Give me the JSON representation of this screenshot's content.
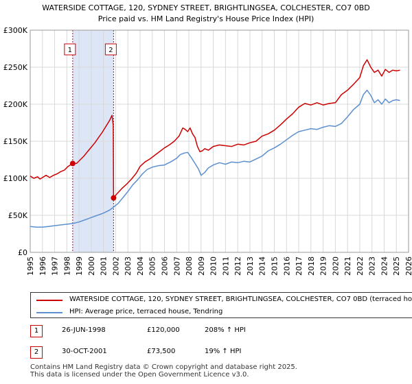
{
  "chart_data": {
    "type": "line",
    "title": "WATERSIDE COTTAGE, 120, SYDNEY STREET, BRIGHTLINGSEA, COLCHESTER, CO7 0BD",
    "subtitle": "Price paid vs. HM Land Registry's House Price Index (HPI)",
    "xlabel": "",
    "ylabel": "",
    "xlim": [
      1995,
      2026
    ],
    "ylim": [
      0,
      300000
    ],
    "x_ticks": [
      "1995",
      "1996",
      "1997",
      "1998",
      "1999",
      "2000",
      "2001",
      "2002",
      "2003",
      "2004",
      "2005",
      "2006",
      "2007",
      "2008",
      "2009",
      "2010",
      "2011",
      "2012",
      "2013",
      "2014",
      "2015",
      "2016",
      "2017",
      "2018",
      "2019",
      "2020",
      "2021",
      "2022",
      "2023",
      "2024",
      "2025",
      "2026"
    ],
    "y_ticks": [
      {
        "value": 0,
        "label": "£0"
      },
      {
        "value": 50000,
        "label": "£50K"
      },
      {
        "value": 100000,
        "label": "£100K"
      },
      {
        "value": 150000,
        "label": "£150K"
      },
      {
        "value": 200000,
        "label": "£200K"
      },
      {
        "value": 250000,
        "label": "£250K"
      },
      {
        "value": 300000,
        "label": "£300K"
      }
    ],
    "grid": true,
    "shaded_span": [
      1998.48,
      2001.83
    ],
    "series": [
      {
        "name": "WATERSIDE COTTAGE, 120, SYDNEY STREET, BRIGHTLINGSEA, COLCHESTER, CO7 0BD (terraced house)",
        "color": "#cc0000",
        "x": [
          1995.0,
          1995.3,
          1995.6,
          1995.8,
          1996.0,
          1996.3,
          1996.6,
          1996.9,
          1997.2,
          1997.5,
          1997.8,
          1998.1,
          1998.48,
          1998.8,
          1999.1,
          1999.4,
          1999.7,
          2000.0,
          2000.3,
          2000.6,
          2000.9,
          2001.2,
          2001.5,
          2001.7,
          2001.8,
          2001.83,
          2002.1,
          2002.5,
          2002.9,
          2003.3,
          2003.7,
          2004.0,
          2004.4,
          2004.8,
          2005.2,
          2005.6,
          2006.0,
          2006.4,
          2006.8,
          2007.2,
          2007.5,
          2007.7,
          2007.9,
          2008.1,
          2008.3,
          2008.5,
          2008.7,
          2008.9,
          2009.1,
          2009.3,
          2009.6,
          2010.0,
          2010.5,
          2011.0,
          2011.5,
          2012.0,
          2012.5,
          2013.0,
          2013.5,
          2014.0,
          2014.5,
          2015.0,
          2015.5,
          2016.0,
          2016.5,
          2017.0,
          2017.5,
          2018.0,
          2018.5,
          2019.0,
          2019.5,
          2020.0,
          2020.5,
          2021.0,
          2021.5,
          2022.0,
          2022.3,
          2022.6,
          2022.9,
          2023.2,
          2023.5,
          2023.8,
          2024.1,
          2024.4,
          2024.7,
          2025.0,
          2025.3
        ],
        "values": [
          103000,
          100000,
          102000,
          99000,
          101000,
          104000,
          101000,
          104000,
          106000,
          109000,
          111000,
          116000,
          120000,
          120000,
          125000,
          130000,
          136000,
          142000,
          148000,
          155000,
          162000,
          170000,
          178000,
          185000,
          172000,
          73500,
          79000,
          86000,
          92000,
          99000,
          107000,
          116000,
          122000,
          126000,
          131000,
          136000,
          141000,
          145000,
          150000,
          157000,
          168000,
          166000,
          163000,
          168000,
          160000,
          155000,
          143000,
          136000,
          137000,
          140000,
          138000,
          143000,
          145000,
          144000,
          143000,
          146000,
          145000,
          148000,
          150000,
          157000,
          160000,
          165000,
          172000,
          180000,
          187000,
          196000,
          201000,
          199000,
          202000,
          199000,
          201000,
          202000,
          213000,
          219000,
          227000,
          236000,
          252000,
          260000,
          250000,
          243000,
          246000,
          238000,
          247000,
          243000,
          246000,
          245000,
          246000
        ]
      },
      {
        "name": "HPI: Average price, terraced house, Tendring",
        "color": "#5b8fd0",
        "x": [
          1995.0,
          1995.5,
          1996.0,
          1996.5,
          1997.0,
          1997.5,
          1998.0,
          1998.5,
          1999.0,
          1999.5,
          2000.0,
          2000.5,
          2001.0,
          2001.5,
          2001.83,
          2002.2,
          2002.6,
          2003.0,
          2003.4,
          2003.8,
          2004.2,
          2004.6,
          2005.0,
          2005.5,
          2006.0,
          2006.5,
          2007.0,
          2007.3,
          2007.6,
          2007.9,
          2008.2,
          2008.5,
          2008.8,
          2009.0,
          2009.3,
          2009.6,
          2010.0,
          2010.5,
          2011.0,
          2011.5,
          2012.0,
          2012.5,
          2013.0,
          2013.5,
          2014.0,
          2014.5,
          2015.0,
          2015.5,
          2016.0,
          2016.5,
          2017.0,
          2017.5,
          2018.0,
          2018.5,
          2019.0,
          2019.5,
          2020.0,
          2020.5,
          2021.0,
          2021.5,
          2022.0,
          2022.3,
          2022.6,
          2022.9,
          2023.2,
          2023.5,
          2023.8,
          2024.1,
          2024.4,
          2024.7,
          2025.0,
          2025.3
        ],
        "values": [
          35000,
          34000,
          34000,
          35000,
          36000,
          37000,
          38000,
          39000,
          41000,
          44000,
          47000,
          50000,
          53000,
          57000,
          61000,
          66000,
          74000,
          82000,
          91000,
          98000,
          106000,
          112000,
          115000,
          117000,
          118000,
          122000,
          127000,
          132000,
          134000,
          135000,
          128000,
          120000,
          112000,
          104000,
          108000,
          114000,
          118000,
          121000,
          119000,
          122000,
          121000,
          123000,
          122000,
          126000,
          130000,
          137000,
          141000,
          146000,
          152000,
          158000,
          163000,
          165000,
          167000,
          166000,
          169000,
          171000,
          170000,
          174000,
          183000,
          193000,
          200000,
          213000,
          219000,
          212000,
          202000,
          206000,
          200000,
          207000,
          202000,
          205000,
          206000,
          205000
        ]
      }
    ],
    "sale_markers": [
      {
        "label": "1",
        "x": 1998.48,
        "value": 120000
      },
      {
        "label": "2",
        "x": 2001.83,
        "value": 73500
      }
    ]
  },
  "legend": {
    "property_label": "WATERSIDE COTTAGE, 120, SYDNEY STREET, BRIGHTLINGSEA, COLCHESTER, CO7 0BD (terraced house)",
    "hpi_label": "HPI: Average price, terraced house, Tendring"
  },
  "transactions": [
    {
      "num": "1",
      "date": "26-JUN-1998",
      "price": "£120,000",
      "hpi": "208% ↑ HPI"
    },
    {
      "num": "2",
      "date": "30-OCT-2001",
      "price": "£73,500",
      "hpi": "19% ↑ HPI"
    }
  ],
  "footer": {
    "line1": "Contains HM Land Registry data © Crown copyright and database right 2025.",
    "line2": "This data is licensed under the Open Government Licence v3.0."
  },
  "colors": {
    "property": "#cc0000",
    "hpi": "#5b8fd0",
    "shade": "#dde6f7",
    "grid": "#d8d8d8",
    "axis": "#999999"
  }
}
